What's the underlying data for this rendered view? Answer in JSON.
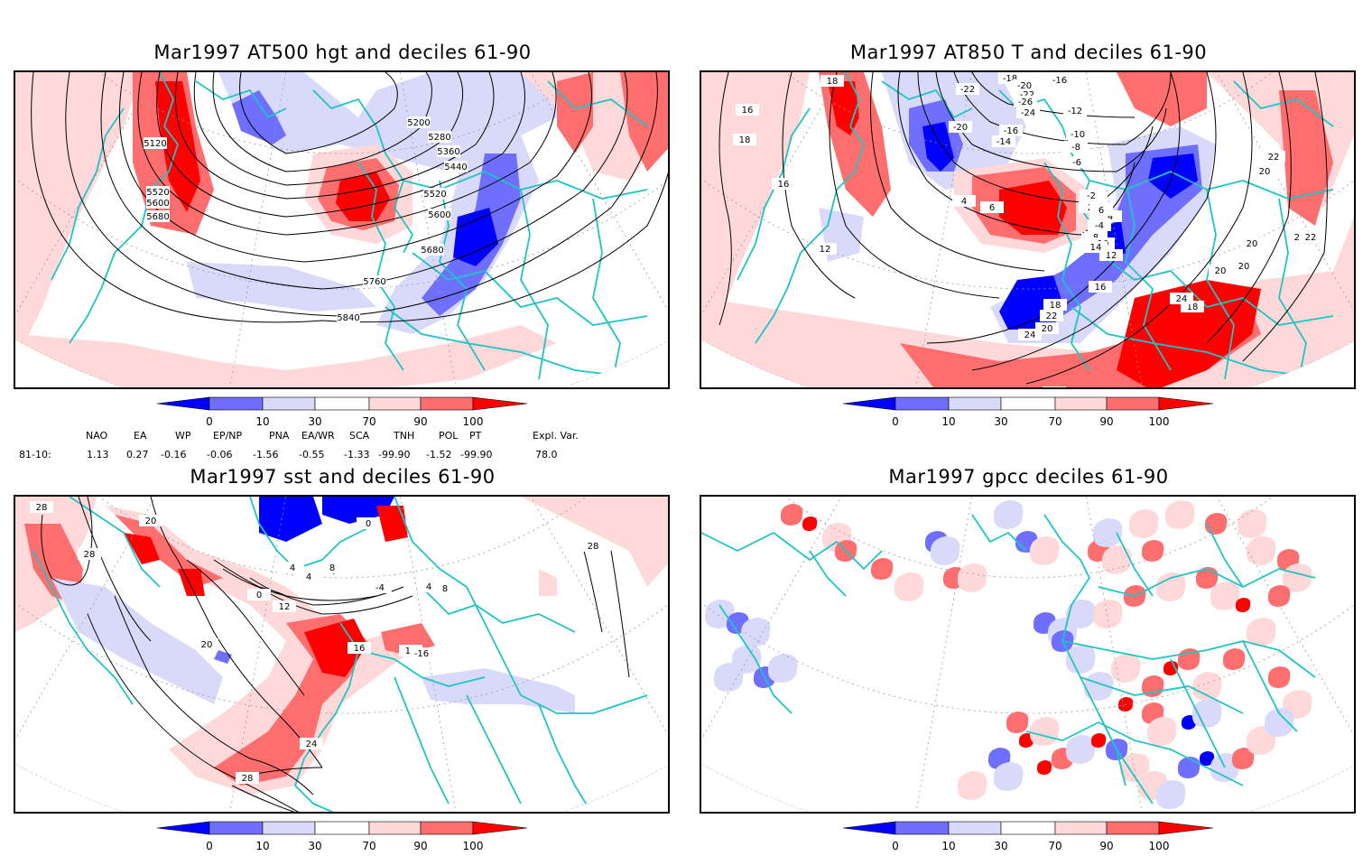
{
  "panels": [
    {
      "id": "at500",
      "title": "Mar1997 AT500 hgt and deciles 61-90",
      "contour_labels": [
        "5120",
        "5200",
        "5280",
        "5360",
        "5440",
        "5520",
        "5520",
        "5600",
        "5600",
        "5680",
        "5680",
        "5760",
        "5840"
      ]
    },
    {
      "id": "at850",
      "title": "Mar1997 AT850 T and deciles 61-90",
      "contour_labels": [
        "18",
        "16",
        "18",
        "16",
        "12",
        "-22",
        "-18",
        "-20",
        "-22",
        "-26",
        "-24",
        "-16",
        "-12",
        "-20",
        "-16",
        "-14",
        "-10",
        "-8",
        "-6",
        "-4",
        "-2",
        "0",
        "2",
        "-2",
        "4",
        "6",
        "4",
        "6",
        "8",
        "10",
        "12",
        "14",
        "16",
        "18",
        "22",
        "20",
        "24",
        "26",
        "22",
        "20",
        "22",
        "20",
        "20",
        "18",
        "20",
        "22",
        "24"
      ]
    },
    {
      "id": "sst",
      "title": "Mar1997 sst and deciles 61-90",
      "contour_labels": [
        "28",
        "28",
        "20",
        "0",
        "4",
        "-4",
        "4",
        "8",
        "0",
        "12",
        "16",
        "16",
        "-16",
        "-4",
        "8",
        "4",
        "28",
        "20",
        "24",
        "28"
      ]
    },
    {
      "id": "gpcc",
      "title": "Mar1997 gpcc deciles 61-90",
      "contour_labels": []
    }
  ],
  "colorbar": {
    "ticks": [
      "0",
      "10",
      "30",
      "70",
      "90",
      "100"
    ],
    "colors": {
      "lt0": "#0000ff",
      "c0_10": "#6e6eff",
      "c10_30": "#d9d9fa",
      "c30_70": "#ffffff",
      "c70_90": "#ffd9d9",
      "c90_100": "#ff6e6e",
      "gt100": "#ff0000"
    }
  },
  "indices": {
    "headers": [
      "NAO",
      "EA",
      "WP",
      "EP/NP",
      "PNA",
      "EA/WR",
      "SCA",
      "TNH",
      "POL",
      "PT",
      "Expl. Var."
    ],
    "row_label": "81-10:",
    "values": [
      "1.13",
      "0.27",
      "-0.16",
      "-0.06",
      "-1.56",
      "-0.55",
      "-1.33",
      "-99.90",
      "-1.52",
      "-99.90",
      "78.0"
    ]
  },
  "colors": {
    "coast": "#1fc4c4",
    "contour": "#000000",
    "grid": "#999999"
  }
}
